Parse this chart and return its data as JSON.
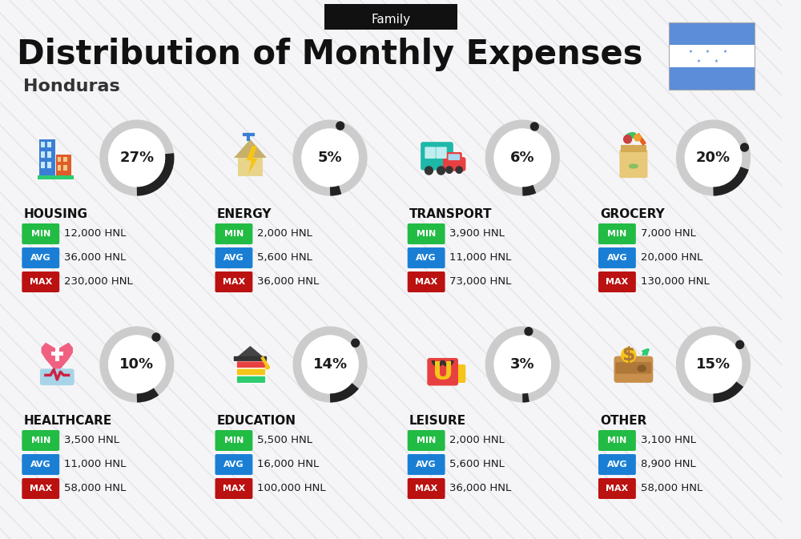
{
  "title": "Distribution of Monthly Expenses",
  "subtitle": "Honduras",
  "family_label": "Family",
  "bg_color": "#f5f5f7",
  "categories": [
    {
      "name": "HOUSING",
      "pct": 27,
      "min": "12,000 HNL",
      "avg": "36,000 HNL",
      "max": "230,000 HNL",
      "row": 0,
      "col": 0
    },
    {
      "name": "ENERGY",
      "pct": 5,
      "min": "2,000 HNL",
      "avg": "5,600 HNL",
      "max": "36,000 HNL",
      "row": 0,
      "col": 1
    },
    {
      "name": "TRANSPORT",
      "pct": 6,
      "min": "3,900 HNL",
      "avg": "11,000 HNL",
      "max": "73,000 HNL",
      "row": 0,
      "col": 2
    },
    {
      "name": "GROCERY",
      "pct": 20,
      "min": "7,000 HNL",
      "avg": "20,000 HNL",
      "max": "130,000 HNL",
      "row": 0,
      "col": 3
    },
    {
      "name": "HEALTHCARE",
      "pct": 10,
      "min": "3,500 HNL",
      "avg": "11,000 HNL",
      "max": "58,000 HNL",
      "row": 1,
      "col": 0
    },
    {
      "name": "EDUCATION",
      "pct": 14,
      "min": "5,500 HNL",
      "avg": "16,000 HNL",
      "max": "100,000 HNL",
      "row": 1,
      "col": 1
    },
    {
      "name": "LEISURE",
      "pct": 3,
      "min": "2,000 HNL",
      "avg": "5,600 HNL",
      "max": "36,000 HNL",
      "row": 1,
      "col": 2
    },
    {
      "name": "OTHER",
      "pct": 15,
      "min": "3,100 HNL",
      "avg": "8,900 HNL",
      "max": "58,000 HNL",
      "row": 1,
      "col": 3
    }
  ],
  "min_color": "#22bb44",
  "avg_color": "#1a7fd4",
  "max_color": "#bb1111",
  "arc_dark_color": "#222222",
  "arc_bg_color": "#cccccc",
  "label_color": "#111111",
  "tag_text_color": "#ffffff",
  "title_color": "#111111",
  "subtitle_color": "#333333",
  "flag_blue": "#5b8dd9",
  "family_box_color": "#111111"
}
